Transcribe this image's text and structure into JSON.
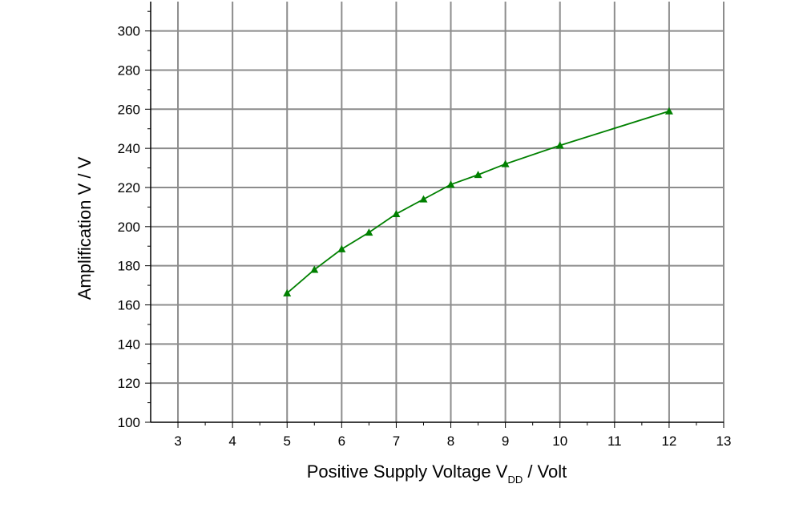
{
  "chart_data": {
    "type": "line",
    "title": "",
    "xlabel": "Positive Supply Voltage V",
    "xlabel_subscript": "DD",
    "xlabel_suffix": " / Volt",
    "ylabel": "Amplification V / V",
    "xlim": [
      2.5,
      13
    ],
    "ylim": [
      100,
      315
    ],
    "xticks": [
      3,
      4,
      5,
      6,
      7,
      8,
      9,
      10,
      11,
      12,
      13
    ],
    "yticks": [
      100,
      120,
      140,
      160,
      180,
      200,
      220,
      240,
      260,
      280,
      300
    ],
    "grid": true,
    "series": [
      {
        "color": "#008000",
        "marker": "triangle",
        "x": [
          5,
          5.5,
          6,
          6.5,
          7,
          7.5,
          8,
          8.5,
          9,
          10,
          12
        ],
        "y": [
          166,
          178,
          188.5,
          197,
          206.5,
          214,
          221.5,
          226.5,
          232,
          241.5,
          259
        ]
      }
    ]
  }
}
